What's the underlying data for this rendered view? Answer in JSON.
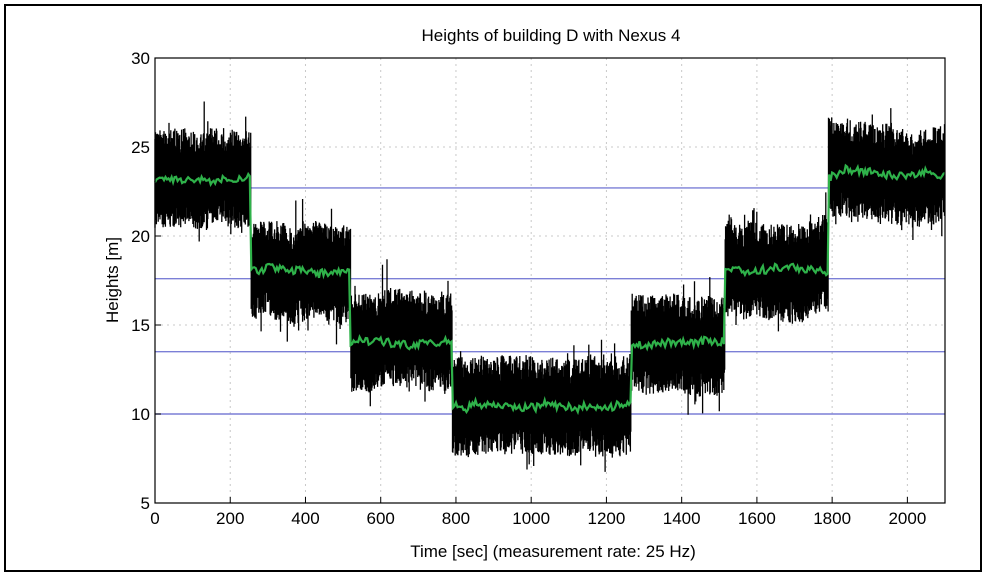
{
  "chart_data": {
    "type": "line",
    "title": "Heights of building D with Nexus 4",
    "xlabel": "Time [sec] (measurement rate: 25 Hz)",
    "ylabel": "Heights [m]",
    "xlim": [
      0,
      2100
    ],
    "ylim": [
      5,
      30
    ],
    "xticks": [
      0,
      200,
      400,
      600,
      800,
      1000,
      1200,
      1400,
      1600,
      1800,
      2000
    ],
    "yticks": [
      5,
      10,
      15,
      20,
      25,
      30
    ],
    "grid": "dotted",
    "floor_levels": [
      10,
      13.5,
      17.6,
      22.7
    ],
    "segments": [
      {
        "x_start": 0,
        "x_end": 255,
        "level": 23.2
      },
      {
        "x_start": 255,
        "x_end": 520,
        "level": 18.1
      },
      {
        "x_start": 520,
        "x_end": 790,
        "level": 14.1
      },
      {
        "x_start": 790,
        "x_end": 1265,
        "level": 10.5
      },
      {
        "x_start": 1265,
        "x_end": 1515,
        "level": 13.9
      },
      {
        "x_start": 1515,
        "x_end": 1790,
        "level": 18.1
      },
      {
        "x_start": 1790,
        "x_end": 2100,
        "level": 23.5
      }
    ],
    "series": [
      {
        "role": "raw",
        "color": "#000000",
        "spread": 2.4
      },
      {
        "role": "smoothed",
        "color": "#2fb24a",
        "spread": 0.4
      }
    ],
    "reference_color": "#7b7fd6"
  }
}
